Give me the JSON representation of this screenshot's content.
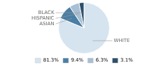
{
  "chart_data": {
    "type": "pie",
    "categories": [
      "WHITE",
      "ASIAN",
      "HISPANIC",
      "BLACK"
    ],
    "values": [
      81.3,
      9.4,
      6.3,
      3.1
    ],
    "value_labels": [
      "81.3%",
      "9.4%",
      "6.3%",
      "3.1%"
    ],
    "colors": [
      "#d6e4f0",
      "#4a7fa5",
      "#a8bfd4",
      "#2e4f6b"
    ],
    "legend": "bottom"
  }
}
